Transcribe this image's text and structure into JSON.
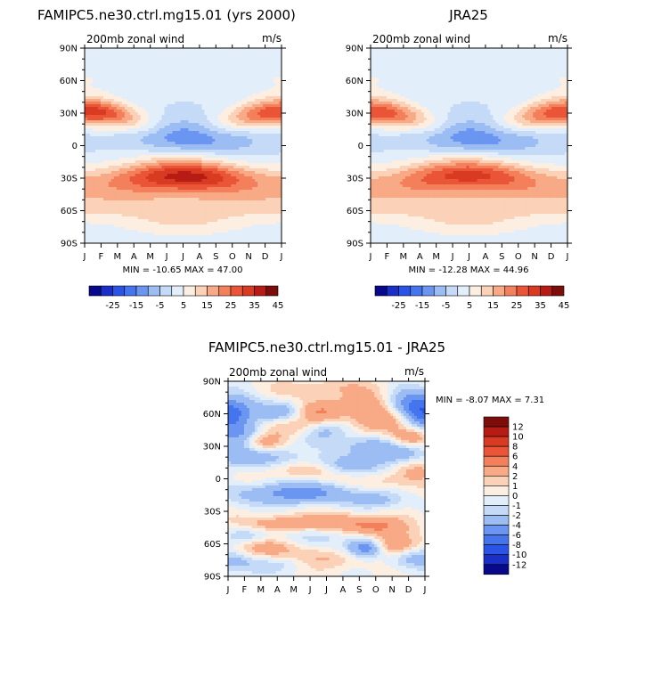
{
  "chart_data": [
    {
      "type": "heatmap",
      "title": "FAMIPC5.ne30.ctrl.mg15.01 (yrs 2000)",
      "left_label": "200mb zonal wind",
      "right_label": "m/s",
      "x_ticks": [
        "J",
        "F",
        "M",
        "A",
        "M",
        "J",
        "J",
        "A",
        "S",
        "O",
        "N",
        "D",
        "J"
      ],
      "y_ticks": [
        "90N",
        "60N",
        "30N",
        "0",
        "30S",
        "60S",
        "90S"
      ],
      "stats": "MIN = -10.65   MAX =  47.00",
      "levels": [
        -30,
        -25,
        -20,
        -15,
        -10,
        -5,
        0,
        5,
        10,
        15,
        20,
        25,
        30,
        35,
        40,
        45
      ],
      "colorbar_labels": [
        "-25",
        "-15",
        "-5",
        "5",
        "15",
        "25",
        "35",
        "45"
      ],
      "colors": [
        "#08088a",
        "#1a2fc8",
        "#2b54e6",
        "#4474ee",
        "#6a95f0",
        "#9bbdf3",
        "#c4daf7",
        "#e3eefb",
        "#fdeee2",
        "#fbd1b7",
        "#f8a985",
        "#f3805b",
        "#ea5538",
        "#d83a22",
        "#b71c14",
        "#7d0d0a"
      ]
    },
    {
      "type": "heatmap",
      "title": "JRA25",
      "left_label": "200mb zonal wind",
      "right_label": "m/s",
      "x_ticks": [
        "J",
        "F",
        "M",
        "A",
        "M",
        "J",
        "J",
        "A",
        "S",
        "O",
        "N",
        "D",
        "J"
      ],
      "y_ticks": [
        "90N",
        "60N",
        "30N",
        "0",
        "30S",
        "60S",
        "90S"
      ],
      "stats": "MIN = -12.28   MAX =  44.96",
      "levels": [
        -30,
        -25,
        -20,
        -15,
        -10,
        -5,
        0,
        5,
        10,
        15,
        20,
        25,
        30,
        35,
        40,
        45
      ],
      "colorbar_labels": [
        "-25",
        "-15",
        "-5",
        "5",
        "15",
        "25",
        "35",
        "45"
      ],
      "colors": [
        "#08088a",
        "#1a2fc8",
        "#2b54e6",
        "#4474ee",
        "#6a95f0",
        "#9bbdf3",
        "#c4daf7",
        "#e3eefb",
        "#fdeee2",
        "#fbd1b7",
        "#f8a985",
        "#f3805b",
        "#ea5538",
        "#d83a22",
        "#b71c14",
        "#7d0d0a"
      ]
    },
    {
      "type": "heatmap",
      "title": "FAMIPC5.ne30.ctrl.mg15.01 - JRA25",
      "left_label": "200mb zonal wind",
      "right_label": "m/s",
      "x_ticks": [
        "J",
        "F",
        "M",
        "A",
        "M",
        "J",
        "J",
        "A",
        "S",
        "O",
        "N",
        "D",
        "J"
      ],
      "y_ticks": [
        "90N",
        "60N",
        "30N",
        "0",
        "30S",
        "60S",
        "90S"
      ],
      "stats": "MIN =  -8.07   MAX =   7.31",
      "levels": [
        -12,
        -10,
        -8,
        -6,
        -4,
        -2,
        -1,
        0,
        1,
        2,
        4,
        6,
        8,
        10,
        12
      ],
      "colorbar_labels": [
        "12",
        "10",
        "8",
        "6",
        "4",
        "2",
        "1",
        "0",
        "-1",
        "-2",
        "-4",
        "-6",
        "-8",
        "-10",
        "-12"
      ],
      "colors": [
        "#08088a",
        "#1a2fc8",
        "#2b54e6",
        "#4474ee",
        "#6a95f0",
        "#9bbdf3",
        "#c4daf7",
        "#e3eefb",
        "#fdeee2",
        "#fbd1b7",
        "#f8a985",
        "#f3805b",
        "#ea5538",
        "#d83a22",
        "#b71c14",
        "#7d0d0a"
      ]
    }
  ]
}
